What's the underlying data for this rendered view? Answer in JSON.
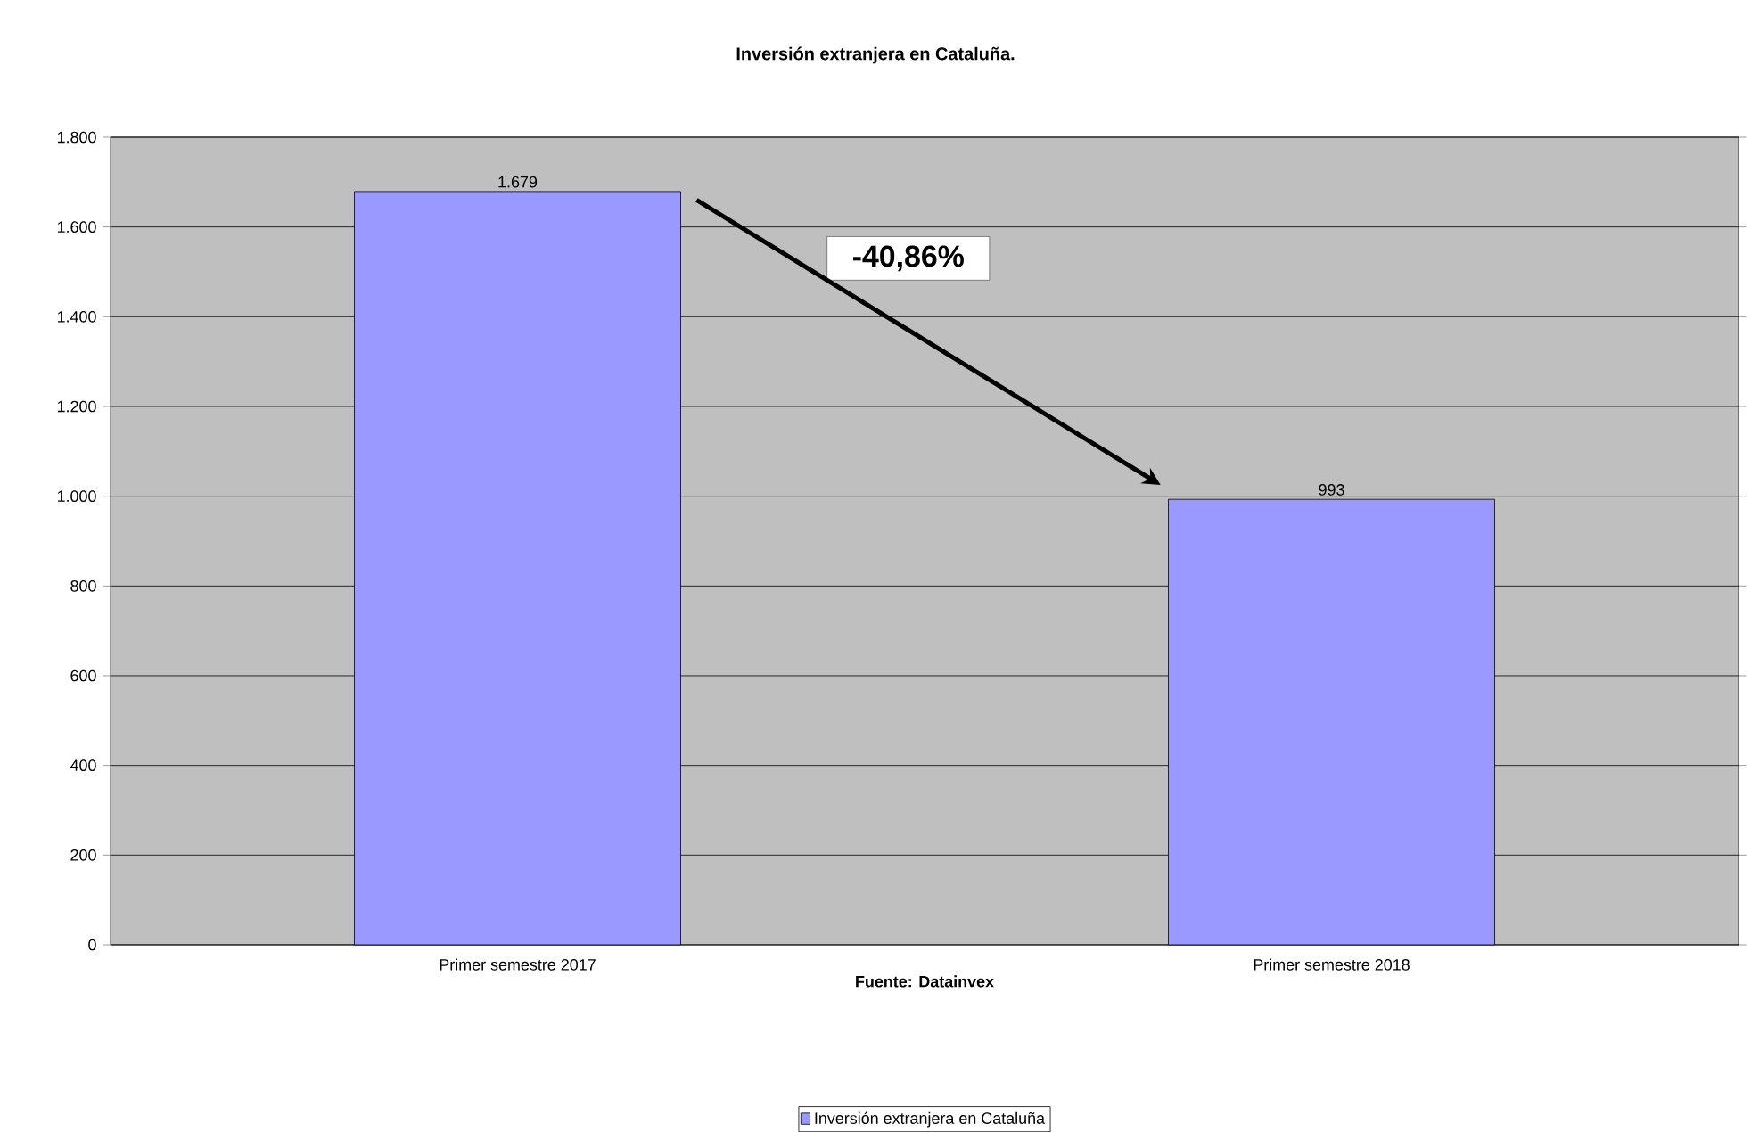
{
  "chart_data": {
    "type": "bar",
    "title": "Inversión extranjera en Cataluña.",
    "xlabel": "Fuente: Datainvex",
    "categories": [
      "Primer semestre 2017",
      "Primer semestre 2018"
    ],
    "series": [
      {
        "name": "Inversión extranjera en Cataluña",
        "color": "#9999ff",
        "values": [
          1679,
          993
        ],
        "value_labels": [
          "1.679",
          "993"
        ]
      }
    ],
    "ylim": [
      0,
      1800
    ],
    "yticks": [
      0,
      200,
      400,
      600,
      800,
      {
        "value": 1000,
        "label": "1.000"
      },
      {
        "value": 1200,
        "label": "1.200"
      },
      {
        "value": 1400,
        "label": "1.400"
      },
      {
        "value": 1600,
        "label": "1.600"
      },
      {
        "value": 1800,
        "label": "1.800"
      }
    ],
    "grid": "y",
    "legend": "bottom",
    "annotations": [
      "-40,86%"
    ]
  }
}
